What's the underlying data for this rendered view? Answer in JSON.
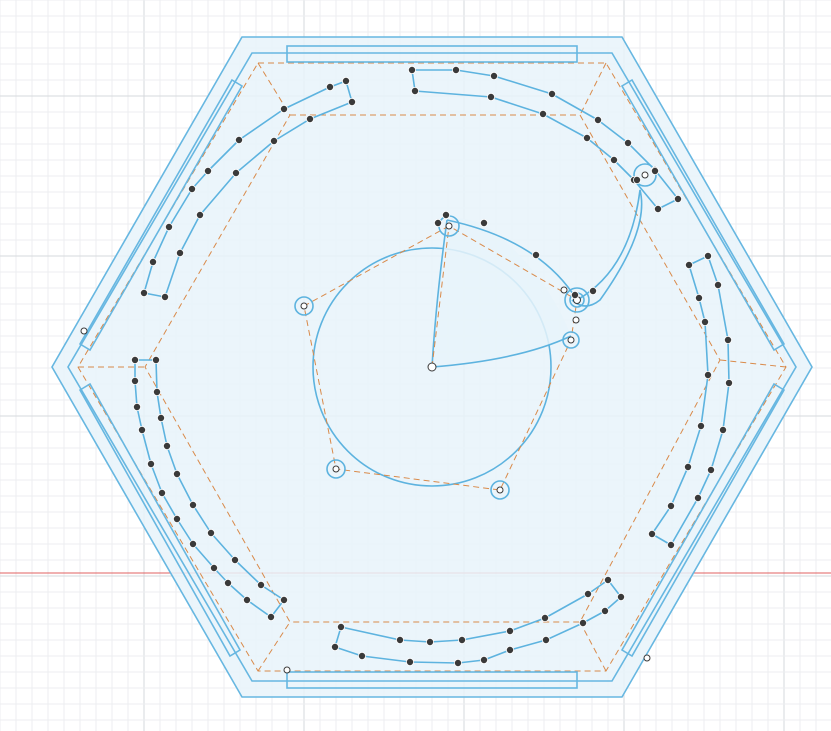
{
  "canvas": {
    "background": "#ffffff",
    "grid_minor_color": "#eceef0",
    "grid_major_color": "#d6d9dc",
    "x_axis_color": "#e06060"
  },
  "sketch": {
    "profile_color": "#67b7e1",
    "profile_fill": "#e8f3fa",
    "construction_color": "#d98a4a",
    "point_color": "#3a3a3a"
  }
}
